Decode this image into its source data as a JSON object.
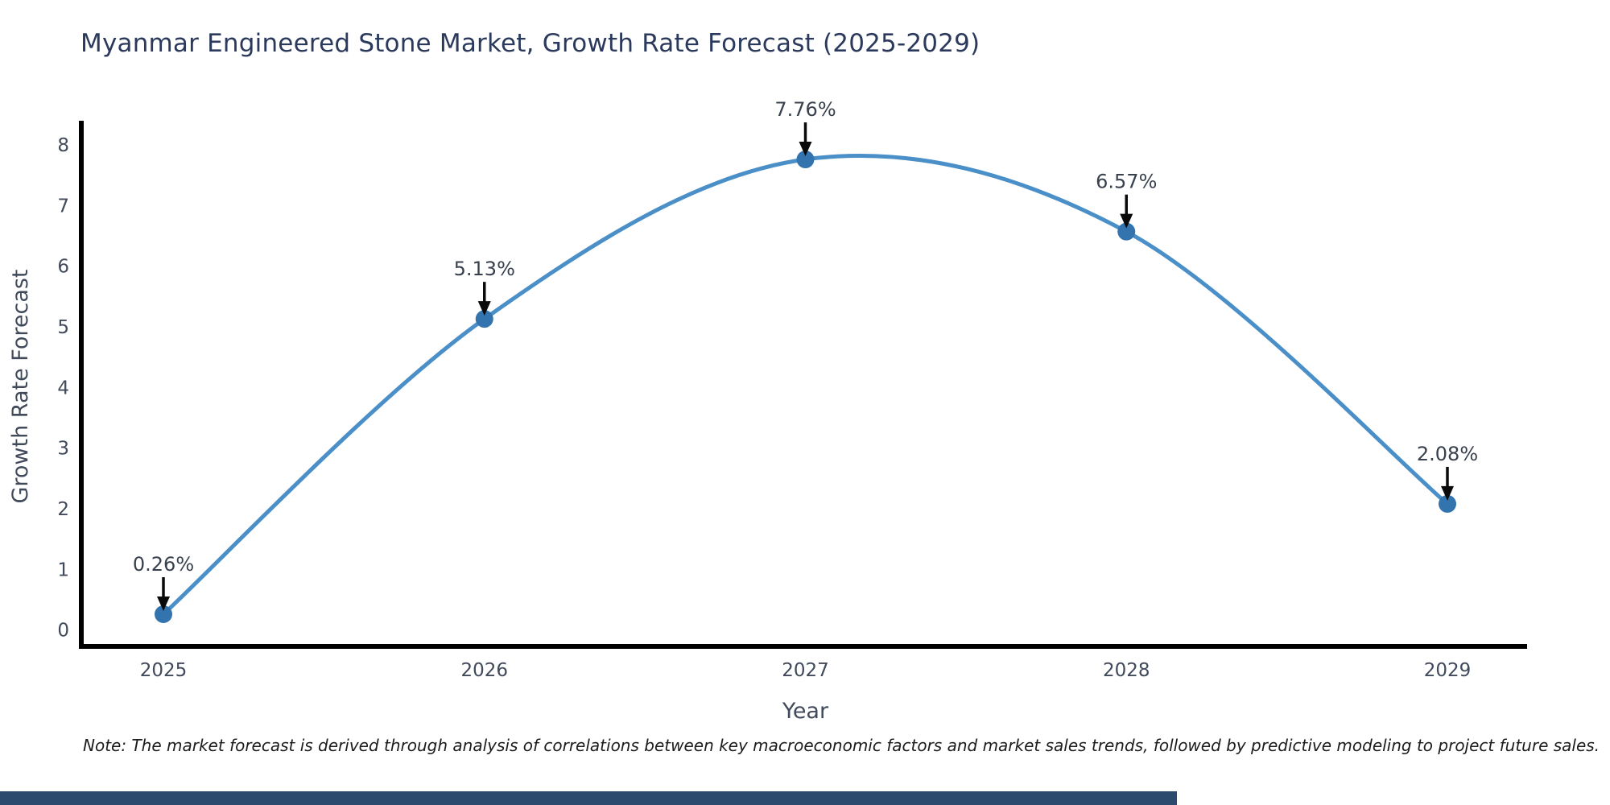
{
  "title": "Myanmar Engineered Stone Market, Growth Rate Forecast (2025-2029)",
  "note": "Note: The market forecast is derived through analysis of correlations between key macroeconomic factors and market sales trends, followed by predictive modeling to project future sales.",
  "colors": {
    "background": "#ffffff",
    "title": "#2b3a5c",
    "tick_label": "#404a5a",
    "axis_title": "#404a5a",
    "axis_line": "#000000",
    "line": "#4a8fc7",
    "marker": "#3474ae",
    "annotation_text": "#38404d",
    "arrow": "#0a0a0a",
    "footer_bar": "#2c4a6e"
  },
  "chart_data": {
    "type": "line",
    "title": "Myanmar Engineered Stone Market, Growth Rate Forecast (2025-2029)",
    "x": [
      2025,
      2026,
      2027,
      2028,
      2029
    ],
    "categories": [
      "2025",
      "2026",
      "2027",
      "2028",
      "2029"
    ],
    "series": [
      {
        "name": "Growth Rate Forecast",
        "values": [
          0.26,
          5.13,
          7.76,
          6.57,
          2.08
        ],
        "labels": [
          "0.26%",
          "5.13%",
          "7.76%",
          "6.57%",
          "2.08%"
        ]
      }
    ],
    "xlabel": "Year",
    "ylabel": "Growth Rate Forecast",
    "ylim": [
      0,
      8
    ],
    "yticks": [
      0,
      1,
      2,
      3,
      4,
      5,
      6,
      7,
      8
    ],
    "grid": false,
    "legend": false,
    "line_shape": "spline",
    "marker_style": "circle",
    "annotation_style": "value labels above points with downward black arrows"
  }
}
